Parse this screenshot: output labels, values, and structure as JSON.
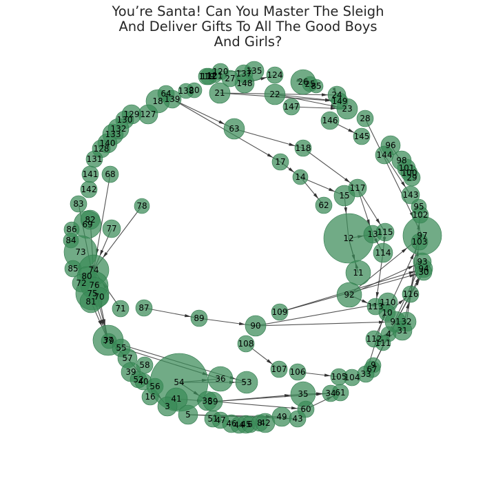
{
  "title": {
    "line1": "You’re Santa! Can You Master The Sleigh",
    "line2": "And Deliver Gifts To All The Good Boys",
    "line3": "And Girls?"
  },
  "colors": {
    "node_fill": "#3a8a58",
    "edge": "#333333",
    "text": "#262626"
  },
  "nodes": [
    {
      "id": "120",
      "r": 12
    },
    {
      "id": "135",
      "r": 14
    },
    {
      "id": "137",
      "r": 13
    },
    {
      "id": "148",
      "r": 14
    },
    {
      "id": "27",
      "r": 12
    },
    {
      "id": "121",
      "r": 10
    },
    {
      "id": "112",
      "r": 12
    },
    {
      "id": "119",
      "r": 12
    },
    {
      "id": "124",
      "r": 12
    },
    {
      "id": "26",
      "r": 18
    },
    {
      "id": "25",
      "r": 11
    },
    {
      "id": "85",
      "r": 10
    },
    {
      "id": "24",
      "r": 13
    },
    {
      "id": "149",
      "r": 12
    },
    {
      "id": "23",
      "r": 15
    },
    {
      "id": "28",
      "r": 12
    },
    {
      "id": "21",
      "r": 15
    },
    {
      "id": "22",
      "r": 15
    },
    {
      "id": "20",
      "r": 11
    },
    {
      "id": "138",
      "r": 11
    },
    {
      "id": "64",
      "r": 12
    },
    {
      "id": "139",
      "r": 13
    },
    {
      "id": "18",
      "r": 17
    },
    {
      "id": "147",
      "r": 12
    },
    {
      "id": "146",
      "r": 13
    },
    {
      "id": "145",
      "r": 12
    },
    {
      "id": "96",
      "r": 14
    },
    {
      "id": "144",
      "r": 13
    },
    {
      "id": "98",
      "r": 14
    },
    {
      "id": "101",
      "r": 13
    },
    {
      "id": "100",
      "r": 12
    },
    {
      "id": "29",
      "r": 12
    },
    {
      "id": "143",
      "r": 13
    },
    {
      "id": "95",
      "r": 11
    },
    {
      "id": "102",
      "r": 12
    },
    {
      "id": "97",
      "r": 28
    },
    {
      "id": "103",
      "r": 12
    },
    {
      "id": "93",
      "r": 13
    },
    {
      "id": "94",
      "r": 13
    },
    {
      "id": "30",
      "r": 12
    },
    {
      "id": "127",
      "r": 14
    },
    {
      "id": "129",
      "r": 14
    },
    {
      "id": "130",
      "r": 13
    },
    {
      "id": "133",
      "r": 15
    },
    {
      "id": "132",
      "r": 15
    },
    {
      "id": "140",
      "r": 14
    },
    {
      "id": "128",
      "r": 13
    },
    {
      "id": "131",
      "r": 12
    },
    {
      "id": "141",
      "r": 12
    },
    {
      "id": "142",
      "r": 12
    },
    {
      "id": "68",
      "r": 12
    },
    {
      "id": "83",
      "r": 12
    },
    {
      "id": "82",
      "r": 14
    },
    {
      "id": "69",
      "r": 20
    },
    {
      "id": "86",
      "r": 11
    },
    {
      "id": "84",
      "r": 11
    },
    {
      "id": "73",
      "r": 24
    },
    {
      "id": "85b",
      "label": "85",
      "r": 12
    },
    {
      "id": "74",
      "r": 22
    },
    {
      "id": "80",
      "r": 14
    },
    {
      "id": "72",
      "r": 13
    },
    {
      "id": "76",
      "r": 20
    },
    {
      "id": "75",
      "r": 24
    },
    {
      "id": "70",
      "r": 14
    },
    {
      "id": "81",
      "r": 16
    },
    {
      "id": "78",
      "r": 11
    },
    {
      "id": "77",
      "r": 13
    },
    {
      "id": "63",
      "r": 15
    },
    {
      "id": "118",
      "r": 12
    },
    {
      "id": "17",
      "r": 12
    },
    {
      "id": "14",
      "r": 11
    },
    {
      "id": "15",
      "r": 15
    },
    {
      "id": "117",
      "r": 13
    },
    {
      "id": "62",
      "r": 12
    },
    {
      "id": "12",
      "r": 36
    },
    {
      "id": "13",
      "r": 13
    },
    {
      "id": "115",
      "r": 13
    },
    {
      "id": "114",
      "r": 14
    },
    {
      "id": "11",
      "r": 18
    },
    {
      "id": "92",
      "r": 18
    },
    {
      "id": "116",
      "r": 12
    },
    {
      "id": "113",
      "r": 12
    },
    {
      "id": "110",
      "r": 14
    },
    {
      "id": "10",
      "r": 12
    },
    {
      "id": "91",
      "r": 15
    },
    {
      "id": "32",
      "r": 14
    },
    {
      "id": "4",
      "r": 11
    },
    {
      "id": "31",
      "r": 14
    },
    {
      "id": "112b",
      "label": "112",
      "r": 12
    },
    {
      "id": "111",
      "r": 11
    },
    {
      "id": "71",
      "r": 12
    },
    {
      "id": "87",
      "r": 12
    },
    {
      "id": "89",
      "r": 12
    },
    {
      "id": "90",
      "r": 15
    },
    {
      "id": "109",
      "r": 12
    },
    {
      "id": "108",
      "r": 12
    },
    {
      "id": "107",
      "r": 12
    },
    {
      "id": "106",
      "r": 12
    },
    {
      "id": "105",
      "r": 12
    },
    {
      "id": "104",
      "r": 12
    },
    {
      "id": "33",
      "r": 12
    },
    {
      "id": "67",
      "r": 12
    },
    {
      "id": "9",
      "r": 11
    },
    {
      "id": "37",
      "r": 22
    },
    {
      "id": "79",
      "r": 11
    },
    {
      "id": "55",
      "r": 13
    },
    {
      "id": "57",
      "r": 14
    },
    {
      "id": "58",
      "r": 12
    },
    {
      "id": "39",
      "r": 14
    },
    {
      "id": "52",
      "r": 12
    },
    {
      "id": "40",
      "r": 12
    },
    {
      "id": "56",
      "r": 12
    },
    {
      "id": "16",
      "r": 12
    },
    {
      "id": "54",
      "r": 42
    },
    {
      "id": "41",
      "r": 16
    },
    {
      "id": "3",
      "r": 14
    },
    {
      "id": "36",
      "r": 18
    },
    {
      "id": "53",
      "r": 16
    },
    {
      "id": "38",
      "r": 14
    },
    {
      "id": "59",
      "r": 14
    },
    {
      "id": "5",
      "r": 14
    },
    {
      "id": "51",
      "r": 12
    },
    {
      "id": "47",
      "r": 12
    },
    {
      "id": "46",
      "r": 13
    },
    {
      "id": "44",
      "r": 12
    },
    {
      "id": "45",
      "r": 13
    },
    {
      "id": "6",
      "r": 12
    },
    {
      "id": "8",
      "r": 12
    },
    {
      "id": "42",
      "r": 14
    },
    {
      "id": "49",
      "r": 14
    },
    {
      "id": "43",
      "r": 12
    },
    {
      "id": "60",
      "r": 12
    },
    {
      "id": "35",
      "r": 18
    },
    {
      "id": "34",
      "r": 12
    },
    {
      "id": "61",
      "r": 12
    }
  ],
  "edges": [
    [
      "120",
      "135"
    ],
    [
      "148",
      "124"
    ],
    [
      "26",
      "25"
    ],
    [
      "26",
      "85"
    ],
    [
      "21",
      "24"
    ],
    [
      "22",
      "23"
    ],
    [
      "21",
      "149"
    ],
    [
      "22",
      "149"
    ],
    [
      "24",
      "149"
    ],
    [
      "139",
      "63"
    ],
    [
      "63",
      "118"
    ],
    [
      "118",
      "117"
    ],
    [
      "139",
      "17"
    ],
    [
      "17",
      "14"
    ],
    [
      "14",
      "62"
    ],
    [
      "14",
      "15"
    ],
    [
      "15",
      "12"
    ],
    [
      "117",
      "13"
    ],
    [
      "117",
      "115"
    ],
    [
      "28",
      "97"
    ],
    [
      "147",
      "23"
    ],
    [
      "146",
      "145"
    ],
    [
      "96",
      "100"
    ],
    [
      "144",
      "143"
    ],
    [
      "12",
      "13"
    ],
    [
      "13",
      "114"
    ],
    [
      "115",
      "114"
    ],
    [
      "114",
      "113"
    ],
    [
      "12",
      "11"
    ],
    [
      "92",
      "97"
    ],
    [
      "92",
      "93"
    ],
    [
      "92",
      "113"
    ],
    [
      "109",
      "94"
    ],
    [
      "109",
      "30"
    ],
    [
      "90",
      "110"
    ],
    [
      "90",
      "91"
    ],
    [
      "89",
      "90"
    ],
    [
      "87",
      "89"
    ],
    [
      "71",
      "74"
    ],
    [
      "77",
      "74"
    ],
    [
      "78",
      "74"
    ],
    [
      "68",
      "74"
    ],
    [
      "83",
      "76"
    ],
    [
      "82",
      "76"
    ],
    [
      "74",
      "37"
    ],
    [
      "75",
      "37"
    ],
    [
      "76",
      "37"
    ],
    [
      "81",
      "37"
    ],
    [
      "37",
      "57"
    ],
    [
      "37",
      "55"
    ],
    [
      "79",
      "53"
    ],
    [
      "55",
      "36"
    ],
    [
      "57",
      "3"
    ],
    [
      "54",
      "53"
    ],
    [
      "54",
      "36"
    ],
    [
      "54",
      "38"
    ],
    [
      "41",
      "59"
    ],
    [
      "59",
      "35"
    ],
    [
      "38",
      "60"
    ],
    [
      "5",
      "49"
    ],
    [
      "5",
      "43"
    ],
    [
      "51",
      "45"
    ],
    [
      "35",
      "34"
    ],
    [
      "59",
      "34"
    ],
    [
      "60",
      "61"
    ],
    [
      "108",
      "107"
    ],
    [
      "106",
      "105"
    ],
    [
      "33",
      "110"
    ],
    [
      "67",
      "93"
    ],
    [
      "9",
      "94"
    ],
    [
      "4",
      "112b"
    ],
    [
      "112b",
      "97"
    ],
    [
      "111",
      "32"
    ],
    [
      "31",
      "116"
    ],
    [
      "10",
      "116"
    ],
    [
      "91",
      "30"
    ],
    [
      "32",
      "103"
    ],
    [
      "116",
      "102"
    ],
    [
      "11",
      "12"
    ]
  ]
}
